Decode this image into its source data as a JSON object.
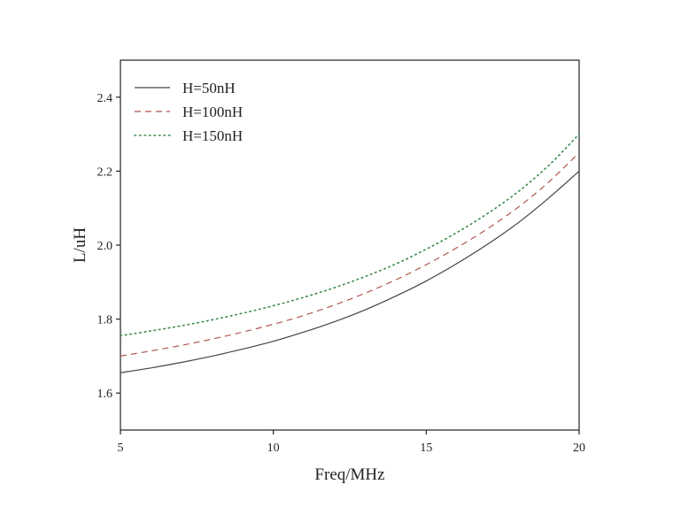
{
  "chart_data": {
    "type": "line",
    "xlabel": "Freq/MHz",
    "ylabel": "L/uH",
    "xlim": [
      5,
      20
    ],
    "ylim": [
      1.5,
      2.5
    ],
    "xticks": [
      "5",
      "10",
      "15",
      "20"
    ],
    "yticks": [
      "1.6",
      "1.8",
      "2.0",
      "2.2",
      "2.4"
    ],
    "grid": false,
    "legend_position": "top-left",
    "x": [
      5,
      6,
      7,
      8,
      9,
      10,
      11,
      12,
      13,
      14,
      15,
      16,
      17,
      18,
      19,
      20
    ],
    "series": [
      {
        "name": "H=50nH",
        "style": "solid",
        "color": "#444444",
        "values": [
          1.655,
          1.668,
          1.683,
          1.7,
          1.719,
          1.74,
          1.765,
          1.793,
          1.825,
          1.862,
          1.903,
          1.95,
          2.002,
          2.06,
          2.127,
          2.2
        ]
      },
      {
        "name": "H=100nH",
        "style": "dashed",
        "color": "#b0554f",
        "values": [
          1.7,
          1.714,
          1.729,
          1.746,
          1.765,
          1.786,
          1.81,
          1.838,
          1.87,
          1.906,
          1.947,
          1.993,
          2.044,
          2.102,
          2.17,
          2.25
        ]
      },
      {
        "name": "H=150nH",
        "style": "dotted",
        "color": "#3a8a4a",
        "values": [
          1.755,
          1.768,
          1.782,
          1.798,
          1.816,
          1.836,
          1.859,
          1.885,
          1.915,
          1.949,
          1.989,
          2.034,
          2.085,
          2.144,
          2.215,
          2.3
        ]
      }
    ]
  }
}
